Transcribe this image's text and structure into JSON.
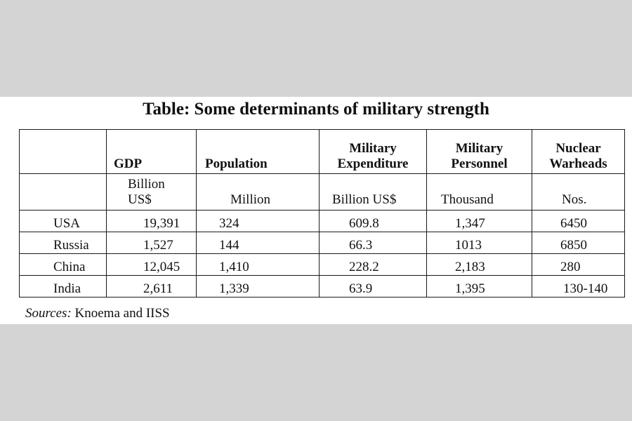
{
  "title": "Table: Some determinants of military strength",
  "headers": {
    "gdp": "GDP",
    "population": "Population",
    "military_expenditure": [
      "Military",
      "Expenditure"
    ],
    "military_personnel": [
      "Military",
      "Personnel"
    ],
    "nuclear_warheads": [
      "Nuclear",
      "Warheads"
    ]
  },
  "units": {
    "gdp": [
      "Billion",
      "US$"
    ],
    "population": "Million",
    "military_expenditure": "Billion US$",
    "military_personnel": "Thousand",
    "nuclear_warheads": "Nos."
  },
  "rows": [
    {
      "country": "USA",
      "gdp": "19,391",
      "population": "324",
      "military_expenditure": "609.8",
      "military_personnel": "1,347",
      "nuclear_warheads": "6450"
    },
    {
      "country": "Russia",
      "gdp": "1,527",
      "population": "144",
      "military_expenditure": "66.3",
      "military_personnel": "1013",
      "nuclear_warheads": "6850"
    },
    {
      "country": "China",
      "gdp": "12,045",
      "population": "1,410",
      "military_expenditure": "228.2",
      "military_personnel": "2,183",
      "nuclear_warheads": "280"
    },
    {
      "country": "India",
      "gdp": "2,611",
      "population": "1,339",
      "military_expenditure": "63.9",
      "military_personnel": "1,395",
      "nuclear_warheads": "130-140"
    }
  ],
  "source": {
    "label": "Sources:",
    "text": " Knoema and IISS"
  }
}
